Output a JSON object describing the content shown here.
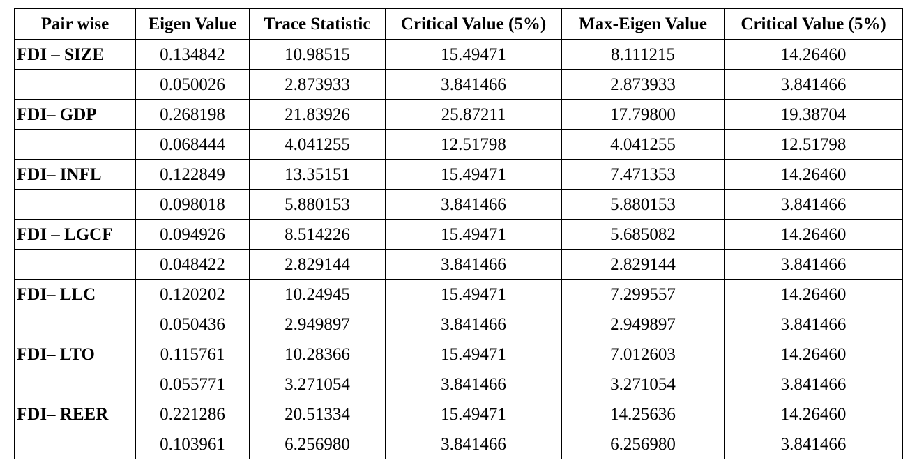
{
  "table": {
    "headers": [
      "Pair wise",
      "Eigen Value",
      "Trace Statistic",
      "Critical Value (5%)",
      "Max-Eigen Value",
      "Critical Value (5%)"
    ],
    "rows": [
      [
        "FDI – SIZE",
        "0.134842",
        "10.98515",
        "15.49471",
        "8.111215",
        "14.26460"
      ],
      [
        "",
        "0.050026",
        "2.873933",
        "3.841466",
        "2.873933",
        "3.841466"
      ],
      [
        "FDI– GDP",
        "0.268198",
        "21.83926",
        "25.87211",
        "17.79800",
        "19.38704"
      ],
      [
        "",
        "0.068444",
        "4.041255",
        "12.51798",
        "4.041255",
        "12.51798"
      ],
      [
        "FDI– INFL",
        "0.122849",
        "13.35151",
        "15.49471",
        "7.471353",
        "14.26460"
      ],
      [
        "",
        "0.098018",
        "5.880153",
        "3.841466",
        "5.880153",
        "3.841466"
      ],
      [
        "FDI – LGCF",
        "0.094926",
        "8.514226",
        "15.49471",
        "5.685082",
        "14.26460"
      ],
      [
        "",
        "0.048422",
        "2.829144",
        "3.841466",
        "2.829144",
        "3.841466"
      ],
      [
        "FDI– LLC",
        "0.120202",
        "10.24945",
        "15.49471",
        "7.299557",
        "14.26460"
      ],
      [
        "",
        "0.050436",
        "2.949897",
        "3.841466",
        "2.949897",
        "3.841466"
      ],
      [
        "FDI– LTO",
        "0.115761",
        "10.28366",
        "15.49471",
        "7.012603",
        "14.26460"
      ],
      [
        "",
        "0.055771",
        "3.271054",
        "3.841466",
        "3.271054",
        "3.841466"
      ],
      [
        "FDI– REER",
        "0.221286",
        "20.51334",
        "15.49471",
        "14.25636",
        "14.26460"
      ],
      [
        "",
        "0.103961",
        "6.256980",
        "3.841466",
        "6.256980",
        "3.841466"
      ]
    ]
  }
}
